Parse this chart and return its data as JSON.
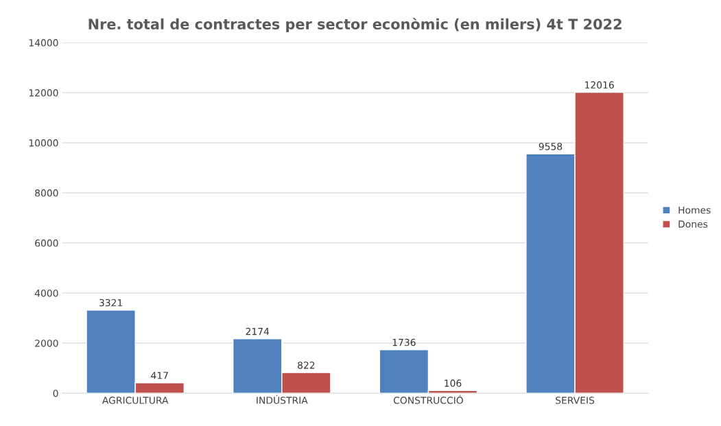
{
  "chart_data": {
    "type": "bar",
    "title": "Nre. total de contractes per sector econòmic (en milers) 4t T 2022",
    "categories": [
      "AGRICULTURA",
      "INDÚSTRIA",
      "CONSTRUCCIÓ",
      "SERVEIS"
    ],
    "series": [
      {
        "name": "Homes",
        "color": "#4f81bd",
        "values": [
          3321,
          2174,
          1736,
          9558
        ]
      },
      {
        "name": "Dones",
        "color": "#c0504d",
        "values": [
          417,
          822,
          106,
          12016
        ]
      }
    ],
    "ylim": [
      0,
      14000
    ],
    "yticks": [
      0,
      2000,
      4000,
      6000,
      8000,
      10000,
      12000,
      14000
    ],
    "grid": "y",
    "legend": "right",
    "data_labels": true
  }
}
